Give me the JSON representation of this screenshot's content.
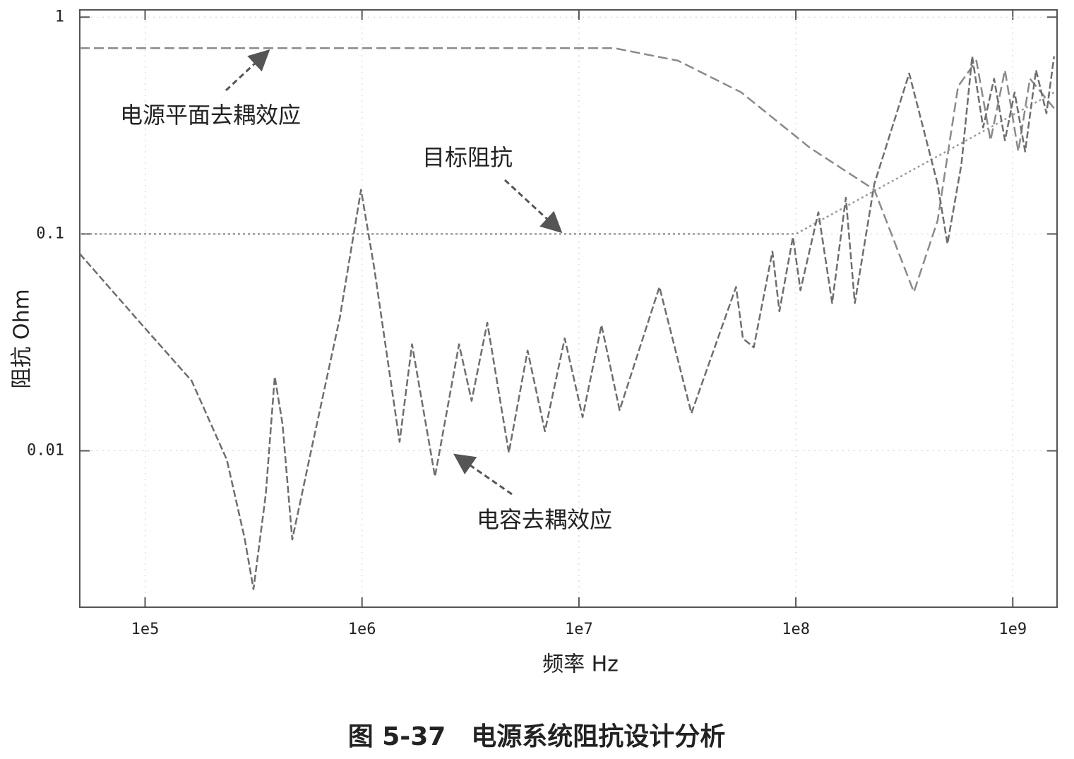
{
  "chart_data": {
    "type": "line",
    "title": "图 5-37　电源系统阻抗设计分析",
    "x_label": "频率 Hz",
    "y_label": "阻抗 Ohm",
    "xscale": "log",
    "yscale": "log",
    "xlim": [
      50000,
      1600000000
    ],
    "ylim": [
      0.0019,
      1.08
    ],
    "xticks": [
      {
        "value": 100000,
        "label": "1e5"
      },
      {
        "value": 1000000,
        "label": "1e6"
      },
      {
        "value": 10000000,
        "label": "1e7"
      },
      {
        "value": 100000000,
        "label": "1e8"
      },
      {
        "value": 1000000000,
        "label": "1e9"
      }
    ],
    "yticks": [
      0.01,
      0.1,
      1
    ],
    "grid": true,
    "series": [
      {
        "name": "电源平面去耦效应",
        "color": "#8a8a8a",
        "dash": "14 6",
        "x": [
          50000,
          14500000,
          28600000,
          56000000,
          116000000,
          230000000,
          350000000,
          450000000,
          560000000,
          680000000,
          790000000,
          920000000,
          1060000000,
          1200000000,
          1550000000
        ],
        "values": [
          0.72,
          0.72,
          0.63,
          0.45,
          0.25,
          0.16,
          0.054,
          0.115,
          0.48,
          0.63,
          0.27,
          0.57,
          0.24,
          0.52,
          0.38
        ]
      },
      {
        "name": "目标阻抗",
        "color": "#9a9a9a",
        "dash": "3 4",
        "x": [
          50000,
          100000000,
          1550000000
        ],
        "values": [
          0.1,
          0.1,
          0.45
        ]
      },
      {
        "name": "电容去耦效应",
        "color": "#6e6e6e",
        "dash": "10 4",
        "x": [
          50000,
          97000,
          164000,
          238000,
          287000,
          316000,
          360000,
          396000,
          430000,
          477000,
          580000,
          790000,
          990000,
          1140000,
          1490000,
          1700000,
          2170000,
          2800000,
          3200000,
          3780000,
          4750000,
          5800000,
          6970000,
          8600000,
          10400000,
          12700000,
          15400000,
          23500000,
          33000000,
          53000000,
          57000000,
          64000000,
          78000000,
          84000000,
          97000000,
          105000000,
          127000000,
          147000000,
          170000000,
          187000000,
          230000000,
          333000000,
          450000000,
          500000000,
          580000000,
          650000000,
          730000000,
          820000000,
          920000000,
          1020000000,
          1140000000,
          1280000000,
          1430000000,
          1550000000
        ],
        "values": [
          0.081,
          0.038,
          0.021,
          0.0091,
          0.004,
          0.0023,
          0.0063,
          0.022,
          0.0133,
          0.0039,
          0.0098,
          0.041,
          0.16,
          0.069,
          0.011,
          0.031,
          0.0076,
          0.031,
          0.017,
          0.039,
          0.0098,
          0.029,
          0.0123,
          0.033,
          0.0143,
          0.038,
          0.0154,
          0.057,
          0.0149,
          0.057,
          0.033,
          0.03,
          0.083,
          0.044,
          0.097,
          0.055,
          0.126,
          0.048,
          0.147,
          0.048,
          0.17,
          0.55,
          0.17,
          0.09,
          0.21,
          0.66,
          0.31,
          0.52,
          0.27,
          0.45,
          0.24,
          0.57,
          0.36,
          0.66
        ]
      }
    ]
  }
}
